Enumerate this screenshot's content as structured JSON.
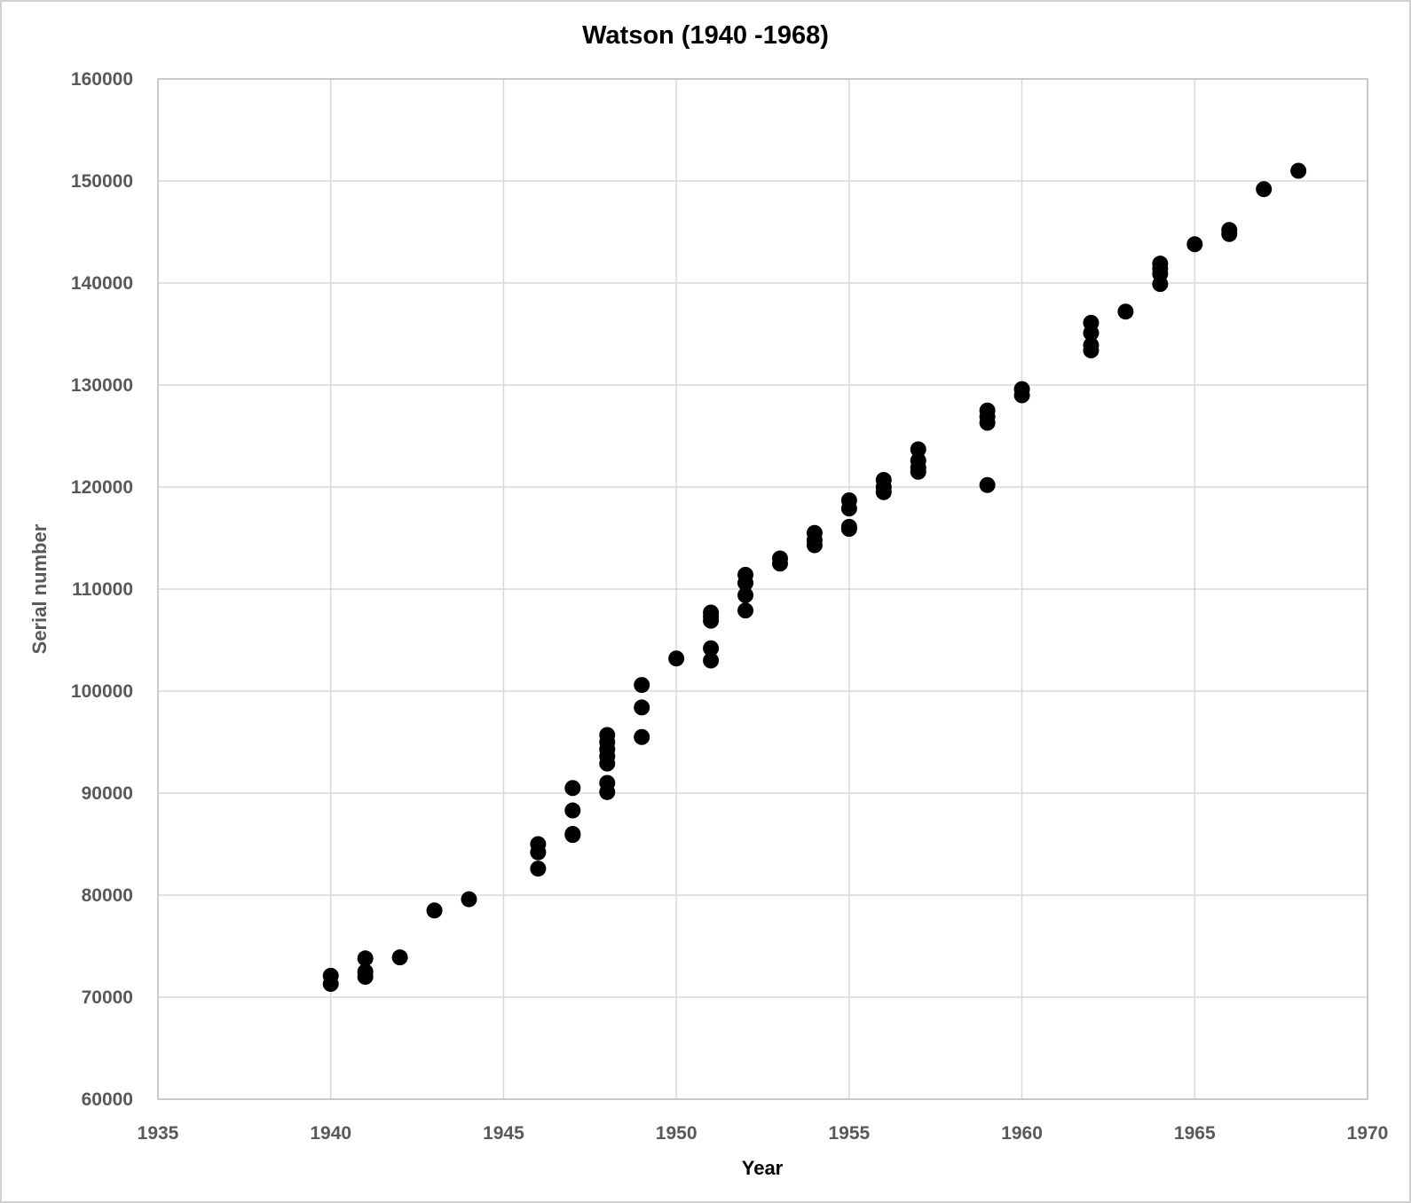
{
  "chart_data": {
    "type": "scatter",
    "title": "Watson (1940 -1968)",
    "xlabel": "Year",
    "ylabel": "Serial number",
    "xlim": [
      1935,
      1970
    ],
    "ylim": [
      60000,
      160000
    ],
    "xticks": [
      1935,
      1940,
      1945,
      1950,
      1955,
      1960,
      1965,
      1970
    ],
    "yticks": [
      60000,
      70000,
      80000,
      90000,
      100000,
      110000,
      120000,
      130000,
      140000,
      150000,
      160000
    ],
    "grid": true,
    "legend": "none",
    "marker_color": "#000000",
    "label_colors": {
      "title": "#000000",
      "xlabel": "#000000",
      "ylabel": "#595959",
      "ticks": "#595959"
    },
    "points": [
      [
        1940,
        72100
      ],
      [
        1940,
        71300
      ],
      [
        1941,
        73800
      ],
      [
        1941,
        72500
      ],
      [
        1941,
        72000
      ],
      [
        1942,
        73900
      ],
      [
        1943,
        78500
      ],
      [
        1944,
        79600
      ],
      [
        1946,
        85000
      ],
      [
        1946,
        84200
      ],
      [
        1946,
        82600
      ],
      [
        1947,
        90500
      ],
      [
        1947,
        88300
      ],
      [
        1947,
        86000
      ],
      [
        1947,
        85900
      ],
      [
        1948,
        95700
      ],
      [
        1948,
        95000
      ],
      [
        1948,
        94300
      ],
      [
        1948,
        93600
      ],
      [
        1948,
        92900
      ],
      [
        1948,
        91000
      ],
      [
        1948,
        90100
      ],
      [
        1949,
        100600
      ],
      [
        1949,
        98400
      ],
      [
        1949,
        95500
      ],
      [
        1950,
        103200
      ],
      [
        1951,
        107700
      ],
      [
        1951,
        107300
      ],
      [
        1951,
        106900
      ],
      [
        1951,
        104200
      ],
      [
        1951,
        103000
      ],
      [
        1952,
        111400
      ],
      [
        1952,
        110600
      ],
      [
        1952,
        109400
      ],
      [
        1952,
        107900
      ],
      [
        1953,
        113000
      ],
      [
        1953,
        112500
      ],
      [
        1954,
        115500
      ],
      [
        1954,
        114800
      ],
      [
        1954,
        114300
      ],
      [
        1955,
        118700
      ],
      [
        1955,
        117900
      ],
      [
        1955,
        116100
      ],
      [
        1955,
        115900
      ],
      [
        1956,
        120700
      ],
      [
        1956,
        120000
      ],
      [
        1956,
        119500
      ],
      [
        1957,
        123700
      ],
      [
        1957,
        122600
      ],
      [
        1957,
        121900
      ],
      [
        1957,
        121500
      ],
      [
        1959,
        127500
      ],
      [
        1959,
        126900
      ],
      [
        1959,
        126300
      ],
      [
        1959,
        120200
      ],
      [
        1960,
        129600
      ],
      [
        1960,
        129000
      ],
      [
        1962,
        136100
      ],
      [
        1962,
        135100
      ],
      [
        1962,
        133900
      ],
      [
        1962,
        133400
      ],
      [
        1963,
        137200
      ],
      [
        1964,
        141900
      ],
      [
        1964,
        141400
      ],
      [
        1964,
        140900
      ],
      [
        1964,
        139900
      ],
      [
        1965,
        143800
      ],
      [
        1966,
        145200
      ],
      [
        1966,
        144800
      ],
      [
        1967,
        149200
      ],
      [
        1968,
        151000
      ]
    ]
  }
}
